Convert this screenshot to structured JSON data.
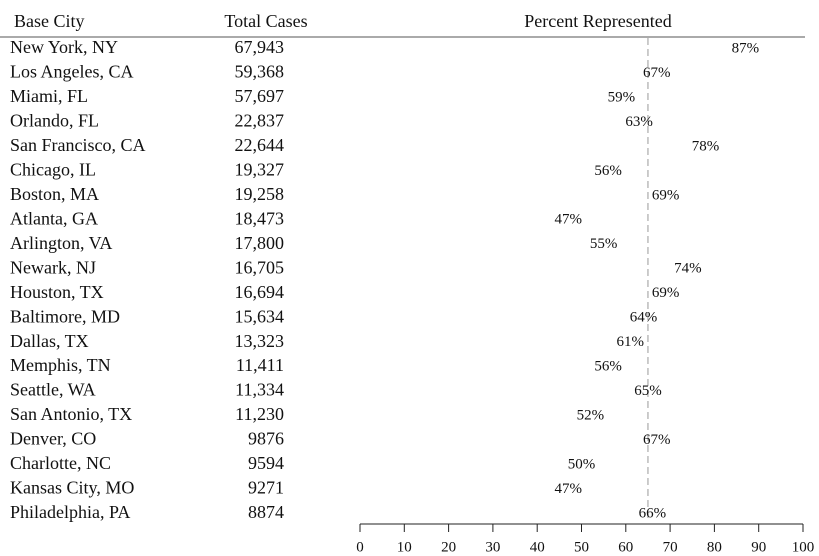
{
  "chart_data": {
    "type": "dot-table",
    "column_headers": [
      "Base City",
      "Total Cases",
      "Percent Represented"
    ],
    "categories": [
      "New York, NY",
      "Los Angeles, CA",
      "Miami, FL",
      "Orlando, FL",
      "San Francisco, CA",
      "Chicago, IL",
      "Boston, MA",
      "Atlanta, GA",
      "Arlington, VA",
      "Newark, NJ",
      "Houston, TX",
      "Baltimore, MD",
      "Dallas, TX",
      "Memphis, TN",
      "Seattle, WA",
      "San Antonio, TX",
      "Denver, CO",
      "Charlotte, NC",
      "Kansas City, MO",
      "Philadelphia, PA"
    ],
    "cases": [
      "67,943",
      "59,368",
      "57,697",
      "22,837",
      "22,644",
      "19,327",
      "19,258",
      "18,473",
      "17,800",
      "16,705",
      "16,694",
      "15,634",
      "13,323",
      "11,411",
      "11,334",
      "11,230",
      "9876",
      "9594",
      "9271",
      "8874"
    ],
    "values": [
      87,
      67,
      59,
      63,
      78,
      56,
      69,
      47,
      55,
      74,
      69,
      64,
      61,
      56,
      65,
      52,
      67,
      50,
      47,
      66
    ],
    "value_labels": [
      "87%",
      "67%",
      "59%",
      "63%",
      "78%",
      "56%",
      "69%",
      "47%",
      "55%",
      "74%",
      "69%",
      "64%",
      "61%",
      "56%",
      "65%",
      "52%",
      "67%",
      "50%",
      "47%",
      "66%"
    ],
    "reference_line": 65,
    "xlim": [
      0,
      100
    ],
    "xticks": [
      0,
      10,
      20,
      30,
      40,
      50,
      60,
      70,
      80,
      90,
      100
    ]
  }
}
